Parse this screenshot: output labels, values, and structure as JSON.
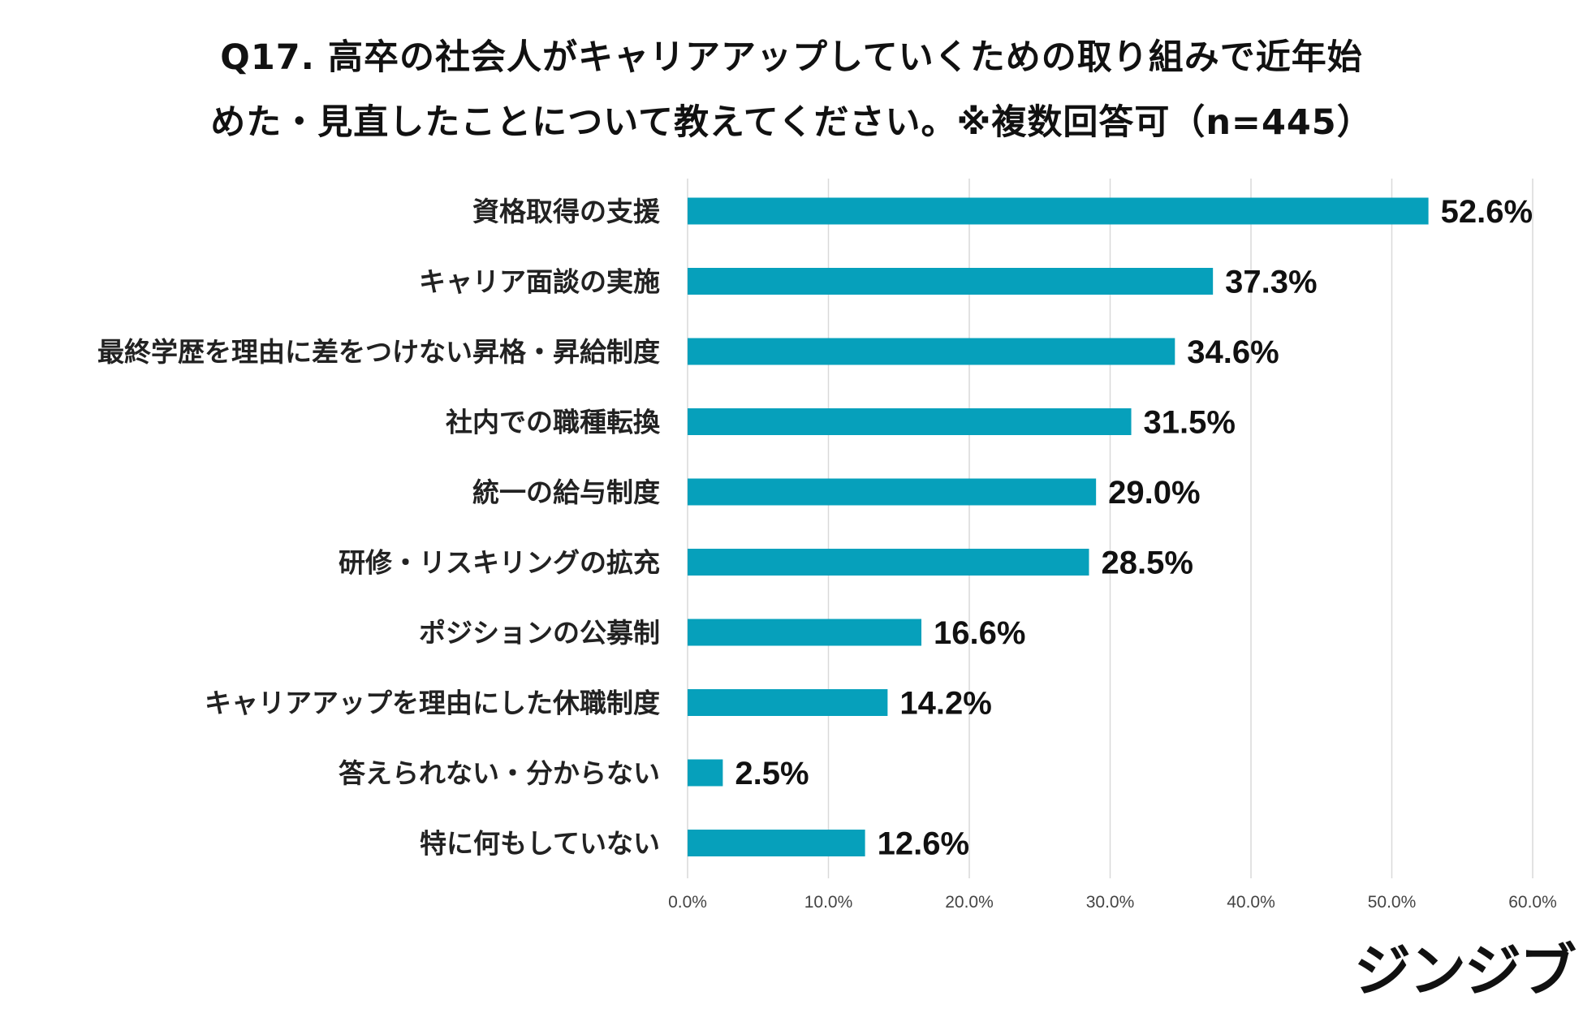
{
  "title_line1": "Q17. 高卒の社会人がキャリアアップしていくための取り組みで近年始",
  "title_line2": "めた・見直したことについて教えてください。※複数回答可（n=445）",
  "brand": "ジンジブ",
  "colors": {
    "bar": "#06a0bb",
    "grid": "#d9d9d9"
  },
  "chart_data": {
    "type": "bar",
    "orientation": "horizontal",
    "title": "Q17. 高卒の社会人がキャリアアップしていくための取り組みで近年始めた・見直したことについて教えてください。※複数回答可（n=445）",
    "categories": [
      "資格取得の支援",
      "キャリア面談の実施",
      "最終学歴を理由に差をつけない昇格・昇給制度",
      "社内での職種転換",
      "統一の給与制度",
      "研修・リスキリングの拡充",
      "ポジションの公募制",
      "キャリアアップを理由にした休職制度",
      "答えられない・分からない",
      "特に何もしていない"
    ],
    "values": [
      52.6,
      37.3,
      34.6,
      31.5,
      29.0,
      28.5,
      16.6,
      14.2,
      2.5,
      12.6
    ],
    "labels": [
      "52.6%",
      "37.3%",
      "34.6%",
      "31.5%",
      "29.0%",
      "28.5%",
      "16.6%",
      "14.2%",
      "2.5%",
      "12.6%"
    ],
    "xlim": [
      0,
      60
    ],
    "xticks": [
      "0.0%",
      "10.0%",
      "20.0%",
      "30.0%",
      "40.0%",
      "50.0%",
      "60.0%"
    ],
    "xlabel": "",
    "ylabel": "",
    "grid": true
  }
}
